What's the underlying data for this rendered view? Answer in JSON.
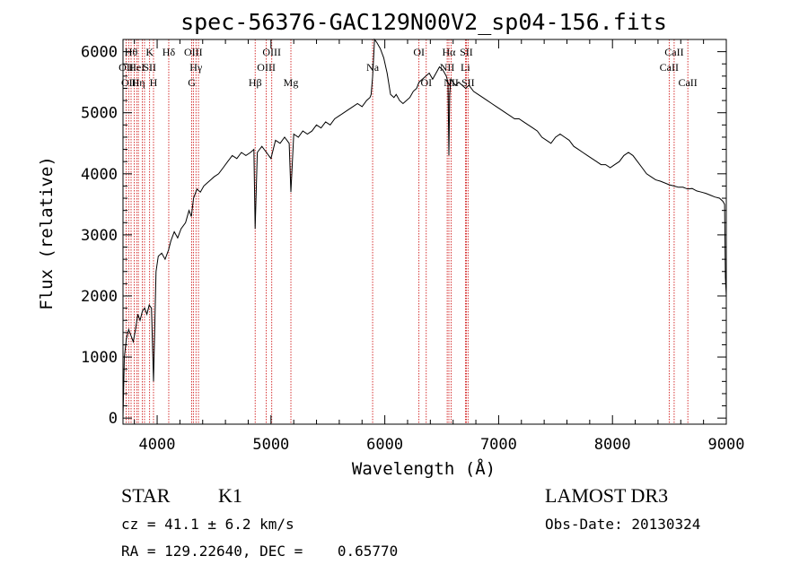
{
  "chart_data": {
    "type": "line",
    "title": "spec-56376-GAC129N00V2_sp04-156.fits",
    "xlabel": "Wavelength (Å)",
    "ylabel": "Flux (relative)",
    "xlim": [
      3700,
      9000
    ],
    "ylim": [
      -100,
      6200
    ],
    "x_ticks": [
      4000,
      5000,
      6000,
      7000,
      8000,
      9000
    ],
    "y_ticks": [
      0,
      1000,
      2000,
      3000,
      4000,
      5000,
      6000
    ],
    "grid": false,
    "series": [
      {
        "x": [
          3700,
          3712,
          3730,
          3750,
          3770,
          3790,
          3810,
          3830,
          3850,
          3870,
          3890,
          3910,
          3930,
          3950,
          3968,
          3990,
          4010,
          4040,
          4070,
          4100,
          4120,
          4150,
          4180,
          4210,
          4250,
          4280,
          4300,
          4320,
          4350,
          4380,
          4410,
          4440,
          4470,
          4500,
          4540,
          4580,
          4620,
          4660,
          4700,
          4740,
          4780,
          4820,
          4850,
          4861,
          4880,
          4920,
          4960,
          5000,
          5040,
          5080,
          5120,
          5160,
          5175,
          5200,
          5240,
          5280,
          5320,
          5360,
          5400,
          5440,
          5480,
          5520,
          5560,
          5600,
          5640,
          5680,
          5720,
          5760,
          5800,
          5840,
          5870,
          5880,
          5893,
          5910,
          5930,
          5960,
          5990,
          6020,
          6050,
          6080,
          6100,
          6130,
          6160,
          6190,
          6220,
          6250,
          6280,
          6300,
          6330,
          6360,
          6390,
          6420,
          6450,
          6480,
          6510,
          6540,
          6555,
          6563,
          6570,
          6580,
          6600,
          6620,
          6650,
          6680,
          6710,
          6740,
          6780,
          6820,
          6860,
          6900,
          6940,
          6980,
          7020,
          7060,
          7100,
          7140,
          7180,
          7220,
          7260,
          7300,
          7340,
          7380,
          7420,
          7460,
          7500,
          7540,
          7580,
          7620,
          7660,
          7700,
          7740,
          7780,
          7820,
          7860,
          7900,
          7940,
          7980,
          8020,
          8060,
          8100,
          8140,
          8180,
          8220,
          8260,
          8300,
          8340,
          8380,
          8420,
          8460,
          8500,
          8540,
          8580,
          8620,
          8660,
          8700,
          8740,
          8780,
          8820,
          8860,
          8900,
          8940,
          8970,
          8985,
          8992,
          9000
        ],
        "y": [
          0,
          1000,
          1300,
          1450,
          1350,
          1250,
          1450,
          1700,
          1600,
          1750,
          1800,
          1700,
          1850,
          1800,
          600,
          2400,
          2650,
          2700,
          2600,
          2750,
          2900,
          3050,
          2950,
          3100,
          3200,
          3400,
          3300,
          3600,
          3750,
          3700,
          3800,
          3850,
          3900,
          3950,
          4000,
          4100,
          4200,
          4300,
          4250,
          4350,
          4300,
          4350,
          4400,
          3100,
          4350,
          4450,
          4350,
          4250,
          4550,
          4500,
          4600,
          4500,
          3700,
          4650,
          4600,
          4700,
          4650,
          4700,
          4800,
          4750,
          4850,
          4800,
          4900,
          4950,
          5000,
          5050,
          5100,
          5150,
          5100,
          5200,
          5250,
          5300,
          5600,
          6200,
          6150,
          6050,
          5900,
          5650,
          5300,
          5250,
          5300,
          5200,
          5150,
          5200,
          5250,
          5350,
          5400,
          5500,
          5550,
          5600,
          5650,
          5550,
          5650,
          5750,
          5700,
          5600,
          5500,
          4300,
          5300,
          5550,
          5500,
          5450,
          5500,
          5450,
          5400,
          5450,
          5350,
          5300,
          5250,
          5200,
          5150,
          5100,
          5050,
          5000,
          4950,
          4900,
          4900,
          4850,
          4800,
          4750,
          4700,
          4600,
          4550,
          4500,
          4600,
          4650,
          4600,
          4550,
          4450,
          4400,
          4350,
          4300,
          4250,
          4200,
          4150,
          4150,
          4100,
          4150,
          4200,
          4300,
          4350,
          4300,
          4200,
          4100,
          4000,
          3950,
          3900,
          3880,
          3850,
          3820,
          3800,
          3780,
          3780,
          3750,
          3760,
          3720,
          3700,
          3680,
          3650,
          3620,
          3600,
          3550,
          3500,
          2300,
          2000
        ]
      }
    ],
    "line_color": "#000000",
    "marker_color": "#cc0000",
    "line_markers": [
      {
        "wl": 3727,
        "labels": [
          {
            "text": "OII",
            "row": 2
          }
        ]
      },
      {
        "wl": 3750,
        "labels": [
          {
            "text": "OII",
            "row": 3
          }
        ]
      },
      {
        "wl": 3771,
        "labels": [
          {
            "text": "Hθ",
            "row": 1
          }
        ]
      },
      {
        "wl": 3798,
        "labels": []
      },
      {
        "wl": 3820,
        "labels": [
          {
            "text": "HeI",
            "row": 2
          }
        ]
      },
      {
        "wl": 3835,
        "labels": [
          {
            "text": "Hη",
            "row": 3
          }
        ]
      },
      {
        "wl": 3870,
        "labels": []
      },
      {
        "wl": 3889,
        "labels": []
      },
      {
        "wl": 3934,
        "labels": [
          {
            "text": "K",
            "row": 1
          },
          {
            "text": "SII",
            "row": 2
          }
        ]
      },
      {
        "wl": 3968,
        "labels": [
          {
            "text": "H",
            "row": 3
          }
        ]
      },
      {
        "wl": 4102,
        "labels": [
          {
            "text": "Hδ",
            "row": 1
          }
        ]
      },
      {
        "wl": 4304,
        "labels": [
          {
            "text": "G",
            "row": 3
          }
        ]
      },
      {
        "wl": 4318,
        "labels": [
          {
            "text": "OIII",
            "row": 1
          }
        ]
      },
      {
        "wl": 4341,
        "labels": [
          {
            "text": "Hγ",
            "row": 2
          }
        ]
      },
      {
        "wl": 4363,
        "labels": []
      },
      {
        "wl": 4861,
        "labels": [
          {
            "text": "Hβ",
            "row": 3
          }
        ]
      },
      {
        "wl": 4959,
        "labels": [
          {
            "text": "OIII",
            "row": 2
          }
        ]
      },
      {
        "wl": 5007,
        "labels": [
          {
            "text": "OIII",
            "row": 1
          }
        ]
      },
      {
        "wl": 5175,
        "labels": [
          {
            "text": "Mg",
            "row": 3
          }
        ]
      },
      {
        "wl": 5893,
        "labels": [
          {
            "text": "Na",
            "row": 2
          }
        ]
      },
      {
        "wl": 6300,
        "labels": [
          {
            "text": "OI",
            "row": 1
          }
        ]
      },
      {
        "wl": 6364,
        "labels": [
          {
            "text": "OI",
            "row": 3
          }
        ]
      },
      {
        "wl": 6548,
        "labels": [
          {
            "text": "NII",
            "row": 2
          }
        ]
      },
      {
        "wl": 6563,
        "labels": [
          {
            "text": "Hα",
            "row": 1
          }
        ]
      },
      {
        "wl": 6583,
        "labels": [
          {
            "text": "NII",
            "row": 3
          }
        ]
      },
      {
        "wl": 6708,
        "labels": [
          {
            "text": "Li",
            "row": 2
          }
        ]
      },
      {
        "wl": 6716,
        "labels": [
          {
            "text": "SII",
            "row": 1
          }
        ]
      },
      {
        "wl": 6731,
        "labels": [
          {
            "text": "SII",
            "row": 3
          }
        ]
      },
      {
        "wl": 8498,
        "labels": [
          {
            "text": "CaII",
            "row": 2
          }
        ]
      },
      {
        "wl": 8542,
        "labels": [
          {
            "text": "CaII",
            "row": 1
          }
        ]
      },
      {
        "wl": 8662,
        "labels": [
          {
            "text": "CaII",
            "row": 3
          }
        ]
      }
    ]
  },
  "info": {
    "object_class": "STAR",
    "subclass": "K1",
    "survey": "LAMOST DR3",
    "velocity": "cz = 41.1 ± 6.2 km/s",
    "obs_date": "Obs-Date: 20130324",
    "coords": "RA = 129.22640, DEC =    0.65770"
  }
}
